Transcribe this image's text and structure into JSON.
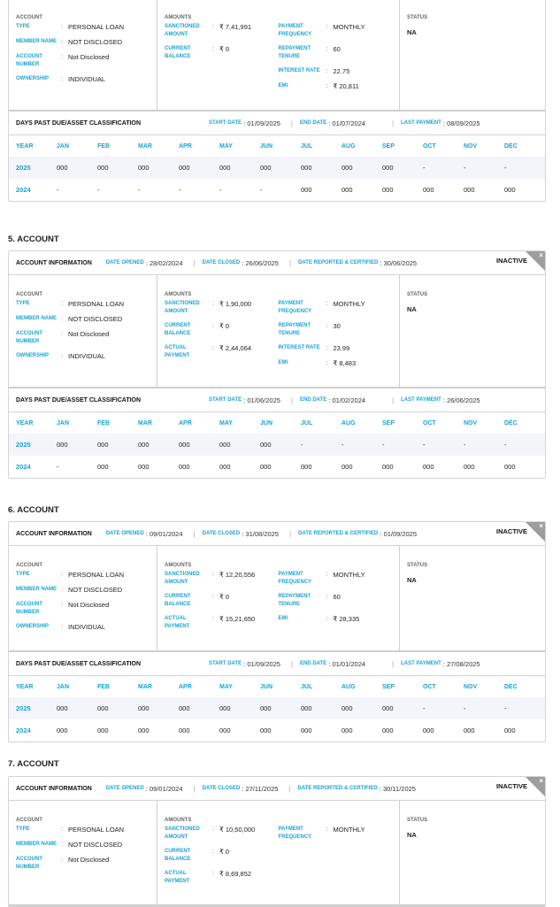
{
  "labels": {
    "account_information": "ACCOUNT INFORMATION",
    "date_opened": "DATE OPENED",
    "date_closed": "DATE CLOSED",
    "date_reported": "DATE REPORTED & CERTIFIED",
    "account": "ACCOUNT",
    "amounts": "AMOUNTS",
    "status": "STATUS",
    "dpd_title": "DAYS PAST DUE/ASSET CLASSIFICATION",
    "start_date": "START DATE",
    "end_date": "END DATE",
    "last_payment": "LAST PAYMENT",
    "months": [
      "YEAR",
      "JAN",
      "FEB",
      "MAR",
      "APR",
      "MAY",
      "JUN",
      "JUL",
      "AUG",
      "SEP",
      "OCT",
      "NOV",
      "DEC"
    ],
    "close": "×",
    "colon": ":"
  },
  "colors": {
    "accent": "#1aa3d4"
  },
  "accounts": [
    {
      "title": "",
      "clipped": true,
      "account_fields": [
        {
          "label": "TYPE",
          "value": "PERSONAL LOAN"
        },
        {
          "label": "MEMBER NAME",
          "value": "NOT DISCLOSED"
        },
        {
          "label": "ACCOUNT NUMBER",
          "value": "Not Disclosed"
        },
        {
          "label": "OWNERSHIP",
          "value": "INDIVIDUAL"
        }
      ],
      "amounts_left": [
        {
          "label": "SANCTIONED AMOUNT",
          "value": "₹ 7,41,991"
        },
        {
          "label": "CURRENT BALANCE",
          "value": "₹ 0"
        }
      ],
      "amounts_right": [
        {
          "label": "PAYMENT FREQUENCY",
          "value": "MONTHLY"
        },
        {
          "label": "REPAYMENT TENURE",
          "value": "60"
        },
        {
          "label": "INTEREST RATE",
          "value": "22.75"
        },
        {
          "label": "EMI",
          "value": "₹ 20,811"
        }
      ],
      "status": "NA",
      "dpd": {
        "start_date": "01/09/2025",
        "end_date": "01/07/2024",
        "last_payment": "08/09/2025",
        "rows": [
          [
            "2025",
            "000",
            "000",
            "000",
            "000",
            "000",
            "000",
            "000",
            "000",
            "000",
            "-",
            "-",
            "-"
          ],
          [
            "2024",
            "-",
            "-",
            "-",
            "-",
            "-",
            "-",
            "000",
            "000",
            "000",
            "000",
            "000",
            "000"
          ]
        ]
      }
    },
    {
      "title": "5. ACCOUNT",
      "date_opened": "28/02/2024",
      "date_closed": "26/06/2025",
      "date_reported": "30/06/2025",
      "badge": "INACTIVE",
      "account_fields": [
        {
          "label": "TYPE",
          "value": "PERSONAL LOAN"
        },
        {
          "label": "MEMBER NAME",
          "value": "NOT DISCLOSED"
        },
        {
          "label": "ACCOUNT NUMBER",
          "value": "Not Disclosed"
        },
        {
          "label": "OWNERSHIP",
          "value": "INDIVIDUAL"
        }
      ],
      "amounts_left": [
        {
          "label": "SANCTIONED AMOUNT",
          "value": "₹ 1,90,000"
        },
        {
          "label": "CURRENT BALANCE",
          "value": "₹ 0"
        },
        {
          "label": "ACTUAL PAYMENT",
          "value": "₹ 2,44,064"
        }
      ],
      "amounts_right": [
        {
          "label": "PAYMENT FREQUENCY",
          "value": "MONTHLY"
        },
        {
          "label": "REPAYMENT TENURE",
          "value": "30"
        },
        {
          "label": "INTEREST RATE",
          "value": "23.99"
        },
        {
          "label": "EMI",
          "value": "₹ 8,483"
        }
      ],
      "status": "NA",
      "dpd": {
        "start_date": "01/06/2025",
        "end_date": "01/02/2024",
        "last_payment": "26/06/2025",
        "rows": [
          [
            "2025",
            "000",
            "000",
            "000",
            "000",
            "000",
            "000",
            "-",
            "-",
            "-",
            "-",
            "-",
            "-"
          ],
          [
            "2024",
            "-",
            "000",
            "000",
            "000",
            "000",
            "000",
            "000",
            "000",
            "000",
            "000",
            "000",
            "000"
          ]
        ]
      }
    },
    {
      "title": "6. ACCOUNT",
      "date_opened": "09/01/2024",
      "date_closed": "31/08/2025",
      "date_reported": "01/09/2025",
      "badge": "INACTIVE",
      "account_fields": [
        {
          "label": "TYPE",
          "value": "PERSONAL LOAN"
        },
        {
          "label": "MEMBER NAME",
          "value": "NOT DISCLOSED"
        },
        {
          "label": "ACCOUNT NUMBER",
          "value": "Not Disclosed"
        },
        {
          "label": "OWNERSHIP",
          "value": "INDIVIDUAL"
        }
      ],
      "amounts_left": [
        {
          "label": "SANCTIONED AMOUNT",
          "value": "₹ 12,20,556"
        },
        {
          "label": "CURRENT BALANCE",
          "value": "₹ 0"
        },
        {
          "label": "ACTUAL PAYMENT",
          "value": "₹ 15,21,650"
        }
      ],
      "amounts_right": [
        {
          "label": "PAYMENT FREQUENCY",
          "value": "MONTHLY"
        },
        {
          "label": "REPAYMENT TENURE",
          "value": "60"
        },
        {
          "label": "EMI",
          "value": "₹ 28,335"
        }
      ],
      "status": "NA",
      "dpd": {
        "start_date": "01/09/2025",
        "end_date": "01/01/2024",
        "last_payment": "27/08/2025",
        "rows": [
          [
            "2025",
            "000",
            "000",
            "000",
            "000",
            "000",
            "000",
            "000",
            "000",
            "000",
            "-",
            "-",
            "-"
          ],
          [
            "2024",
            "000",
            "000",
            "000",
            "000",
            "000",
            "000",
            "000",
            "000",
            "000",
            "000",
            "000",
            "000"
          ]
        ]
      }
    },
    {
      "title": "7. ACCOUNT",
      "date_opened": "09/01/2024",
      "date_closed": "27/11/2025",
      "date_reported": "30/11/2025",
      "badge": "INACTIVE",
      "account_fields": [
        {
          "label": "TYPE",
          "value": "PERSONAL LOAN"
        },
        {
          "label": "MEMBER NAME",
          "value": "NOT DISCLOSED"
        },
        {
          "label": "ACCOUNT NUMBER",
          "value": "Not Disclosed"
        }
      ],
      "amounts_left": [
        {
          "label": "SANCTIONED AMOUNT",
          "value": "₹ 10,50,000"
        },
        {
          "label": "CURRENT BALANCE",
          "value": "₹ 0"
        },
        {
          "label": "ACTUAL PAYMENT",
          "value": "₹ 8,69,852"
        }
      ],
      "amounts_right": [
        {
          "label": "PAYMENT FREQUENCY",
          "value": "MONTHLY"
        }
      ],
      "status": "NA"
    }
  ]
}
